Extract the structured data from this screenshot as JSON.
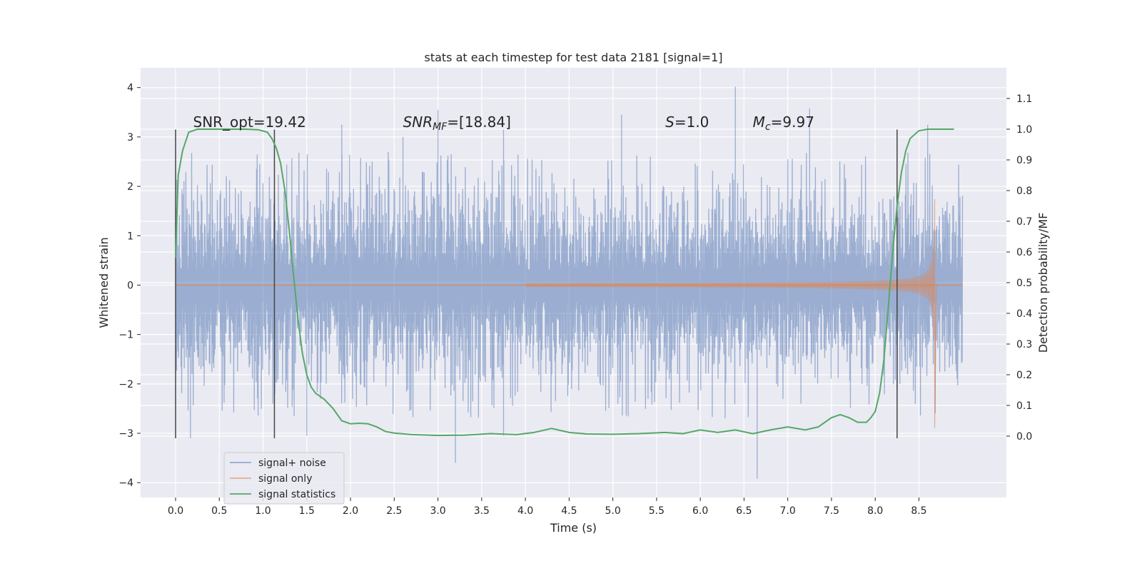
{
  "chart_data": {
    "type": "line",
    "title": "stats at each timestep for test data 2181 [signal=1]",
    "xlabel": "Time (s)",
    "ylabel": "Whitened strain",
    "ylabel_right": "Detection probability/MF",
    "xlim": [
      -0.4,
      9.5
    ],
    "ylim": [
      -4.3,
      4.4
    ],
    "ylim_right": [
      -0.2,
      1.2
    ],
    "x_ticks": [
      "0.0",
      "0.5",
      "1.0",
      "1.5",
      "2.0",
      "2.5",
      "3.0",
      "3.5",
      "4.0",
      "4.5",
      "5.0",
      "5.5",
      "6.0",
      "6.5",
      "7.0",
      "7.5",
      "8.0",
      "8.5"
    ],
    "x_tick_values": [
      0.0,
      0.5,
      1.0,
      1.5,
      2.0,
      2.5,
      3.0,
      3.5,
      4.0,
      4.5,
      5.0,
      5.5,
      6.0,
      6.5,
      7.0,
      7.5,
      8.0,
      8.5
    ],
    "y_ticks": [
      "4",
      "3",
      "2",
      "1",
      "0",
      "−1",
      "−2",
      "−3",
      "−4"
    ],
    "y_tick_values": [
      4,
      3,
      2,
      1,
      0,
      -1,
      -2,
      -3,
      -4
    ],
    "y_ticks_right": [
      "1.1",
      "1.0",
      "0.9",
      "0.8",
      "0.7",
      "0.6",
      "0.5",
      "0.4",
      "0.3",
      "0.2",
      "0.1",
      "0.0"
    ],
    "y_tick_values_right": [
      1.1,
      1.0,
      0.9,
      0.8,
      0.7,
      0.6,
      0.5,
      0.4,
      0.3,
      0.2,
      0.1,
      0.0
    ],
    "annotations": {
      "snr_opt": "SNR_opt=19.42",
      "snr_mf_base": "SNR",
      "snr_mf_sub": "MF",
      "snr_mf_value": "=[18.84]",
      "s_var": "S",
      "s_value": "=1.0",
      "mc_base": "M",
      "mc_sub": "c",
      "mc_value": "=9.97"
    },
    "annotation_x": [
      0.2,
      2.6,
      5.6,
      6.6
    ],
    "annotation_y": 3.2,
    "vertical_lines_x": [
      0.0,
      1.13,
      8.25
    ],
    "vertical_lines_y": [
      -3.1,
      3.15
    ],
    "series": [
      {
        "name": "signal+ noise",
        "color": "#4c72b0",
        "opacity": 0.5,
        "x_range": [
          0.0,
          9.0
        ],
        "envelope_std": 0.95,
        "spikes": [
          {
            "x": 0.17,
            "y": -3.1
          },
          {
            "x": 1.9,
            "y": 3.25
          },
          {
            "x": 2.6,
            "y": 3.0
          },
          {
            "x": 3.0,
            "y": 3.55
          },
          {
            "x": 3.2,
            "y": -3.6
          },
          {
            "x": 3.75,
            "y": 3.15
          },
          {
            "x": 5.1,
            "y": 3.45
          },
          {
            "x": 6.4,
            "y": 4.02
          },
          {
            "x": 6.65,
            "y": -3.92
          },
          {
            "x": 7.25,
            "y": 3.58
          },
          {
            "x": 8.6,
            "y": 3.25
          },
          {
            "x": 1.5,
            "y": -3.05
          },
          {
            "x": 3.75,
            "y": -3.05
          }
        ]
      },
      {
        "name": "signal only",
        "color": "#dd8452",
        "opacity": 0.6,
        "merger_time": 8.68,
        "peak_amplitude": 2.5
      },
      {
        "name": "signal statistics",
        "color": "#55a868",
        "axis": "right",
        "x": [
          0.0,
          0.03,
          0.08,
          0.15,
          0.25,
          0.4,
          0.6,
          0.8,
          0.95,
          1.05,
          1.1,
          1.15,
          1.2,
          1.25,
          1.3,
          1.35,
          1.4,
          1.45,
          1.5,
          1.55,
          1.6,
          1.7,
          1.8,
          1.9,
          2.0,
          2.1,
          2.2,
          2.3,
          2.4,
          2.5,
          2.7,
          3.0,
          3.3,
          3.6,
          3.9,
          4.1,
          4.3,
          4.5,
          4.7,
          5.0,
          5.3,
          5.6,
          5.8,
          6.0,
          6.2,
          6.4,
          6.6,
          6.8,
          7.0,
          7.2,
          7.35,
          7.5,
          7.6,
          7.7,
          7.8,
          7.9,
          7.95,
          8.0,
          8.05,
          8.1,
          8.15,
          8.2,
          8.25,
          8.3,
          8.35,
          8.4,
          8.5,
          8.6,
          8.75,
          8.9
        ],
        "y": [
          0.58,
          0.85,
          0.93,
          0.99,
          1.0,
          1.0,
          1.0,
          1.0,
          0.998,
          0.99,
          0.97,
          0.94,
          0.89,
          0.8,
          0.67,
          0.52,
          0.38,
          0.27,
          0.2,
          0.16,
          0.14,
          0.12,
          0.09,
          0.05,
          0.04,
          0.042,
          0.04,
          0.03,
          0.015,
          0.01,
          0.005,
          0.002,
          0.003,
          0.008,
          0.005,
          0.012,
          0.025,
          0.012,
          0.007,
          0.006,
          0.008,
          0.012,
          0.008,
          0.02,
          0.012,
          0.02,
          0.008,
          0.02,
          0.03,
          0.02,
          0.03,
          0.06,
          0.07,
          0.06,
          0.045,
          0.045,
          0.06,
          0.08,
          0.14,
          0.25,
          0.42,
          0.6,
          0.75,
          0.86,
          0.93,
          0.97,
          0.995,
          1.0,
          1.0,
          1.0
        ]
      }
    ],
    "legend": {
      "placement": "lower-left",
      "entries": [
        {
          "label": "signal+ noise",
          "color": "#4c72b0",
          "opacity": 0.55
        },
        {
          "label": "signal only",
          "color": "#dd8452",
          "opacity": 0.6
        },
        {
          "label": "signal statistics",
          "color": "#55a868",
          "opacity": 1.0
        }
      ]
    },
    "style": {
      "background": "#eaeaf2",
      "grid": true,
      "grid_color": "#ffffff",
      "vline_color": "#444444"
    }
  }
}
